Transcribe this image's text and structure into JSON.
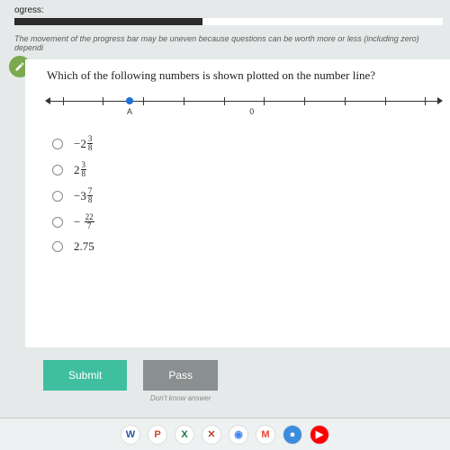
{
  "header": {
    "progress_label": "ogress:",
    "progress_pct": 44,
    "hint": "The movement of the progress bar may be uneven because questions can be worth more or less (including zero) dependi"
  },
  "question": {
    "text": "Which of the following numbers is shown plotted on the number line?"
  },
  "numberline": {
    "tick_count": 10,
    "point_pct": 21,
    "labels": [
      {
        "text": "A",
        "pct": 21
      },
      {
        "text": "0",
        "pct": 52
      }
    ]
  },
  "options": [
    {
      "type": "mixed",
      "sign": "−",
      "whole": "2",
      "num": "3",
      "den": "8"
    },
    {
      "type": "mixed",
      "sign": "",
      "whole": "2",
      "num": "3",
      "den": "8"
    },
    {
      "type": "mixed",
      "sign": "−",
      "whole": "3",
      "num": "7",
      "den": "8"
    },
    {
      "type": "frac",
      "sign": "−",
      "num": "22",
      "den": "7"
    },
    {
      "type": "plain",
      "text": "2.75"
    }
  ],
  "buttons": {
    "submit": "Submit",
    "pass": "Pass",
    "pass_hint": "Don't know answer"
  },
  "taskbar": [
    {
      "bg": "#ffffff",
      "fg": "#2b579a",
      "glyph": "W"
    },
    {
      "bg": "#ffffff",
      "fg": "#d24726",
      "glyph": "P"
    },
    {
      "bg": "#ffffff",
      "fg": "#217346",
      "glyph": "X"
    },
    {
      "bg": "#ffffff",
      "fg": "#b7472a",
      "glyph": "✕"
    },
    {
      "bg": "#ffffff",
      "fg": "#4285f4",
      "glyph": "◉"
    },
    {
      "bg": "#ffffff",
      "fg": "#ea4335",
      "glyph": "M"
    },
    {
      "bg": "#3c8cde",
      "fg": "#ffffff",
      "glyph": "●"
    },
    {
      "bg": "#ff0000",
      "fg": "#ffffff",
      "glyph": "▶"
    }
  ]
}
